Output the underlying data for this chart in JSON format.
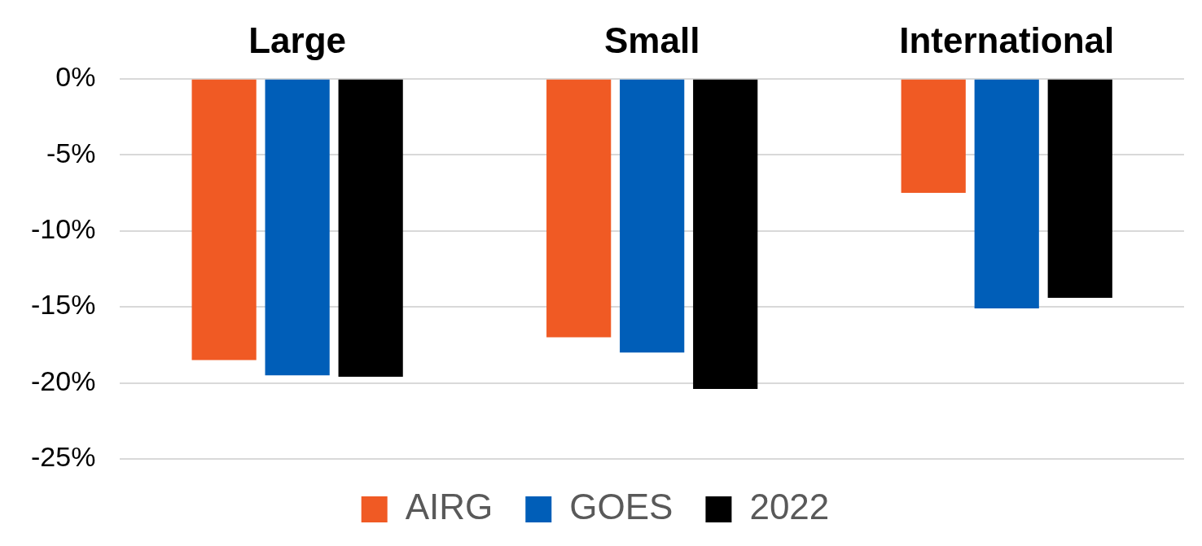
{
  "chart_data": {
    "type": "bar",
    "categories": [
      "Large",
      "Small",
      "International"
    ],
    "series": [
      {
        "name": "AIRG",
        "color": "#f05a24",
        "values": [
          -18.5,
          -17.0,
          -7.5
        ]
      },
      {
        "name": "GOES",
        "color": "#005eb8",
        "values": [
          -19.5,
          -18.0,
          -15.1
        ]
      },
      {
        "name": "2022",
        "color": "#000000",
        "values": [
          -19.6,
          -20.4,
          -14.4
        ]
      }
    ],
    "ylim": [
      -25,
      0
    ],
    "yticks": [
      {
        "value": -25,
        "label": "-25%"
      },
      {
        "value": -20,
        "label": "-20%"
      },
      {
        "value": -15,
        "label": "-15%"
      },
      {
        "value": -10,
        "label": "-10%"
      },
      {
        "value": -5,
        "label": "-5%"
      },
      {
        "value": 0,
        "label": "0%"
      }
    ],
    "grid": "y",
    "legend": "bottom"
  }
}
